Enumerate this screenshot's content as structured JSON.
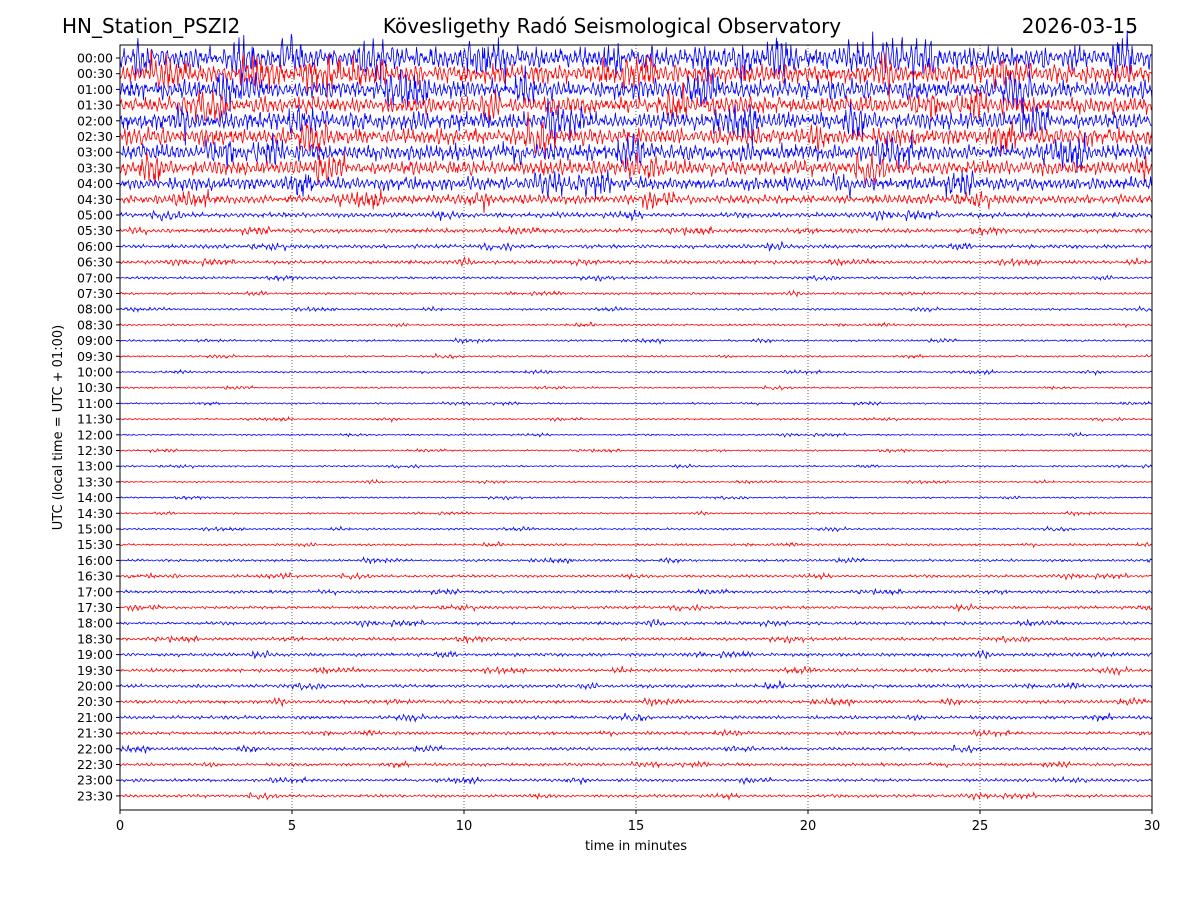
{
  "header": {
    "station": "HN_Station_PSZI2",
    "observatory": "Kövesligethy Radó Seismological Observatory",
    "date": "2026-03-15"
  },
  "chart_data": {
    "type": "line",
    "title": "Kövesligethy Radó Seismological Observatory",
    "xlabel": "time in minutes",
    "ylabel": "UTC (local time = UTC + 01:00)",
    "xlim": [
      0,
      30
    ],
    "xticks": [
      0,
      5,
      10,
      15,
      20,
      25,
      30
    ],
    "vertical_gridlines": [
      5,
      10,
      15,
      20,
      25
    ],
    "grid": "dotted vertical lines at x = 5, 10, 15, 20, 25",
    "row_labels": [
      "00:00",
      "00:30",
      "01:00",
      "01:30",
      "02:00",
      "02:30",
      "03:00",
      "03:30",
      "04:00",
      "04:30",
      "05:00",
      "05:30",
      "06:00",
      "06:30",
      "07:00",
      "07:30",
      "08:00",
      "08:30",
      "09:00",
      "09:30",
      "10:00",
      "10:30",
      "11:00",
      "11:30",
      "12:00",
      "12:30",
      "13:00",
      "13:30",
      "14:00",
      "14:30",
      "15:00",
      "15:30",
      "16:00",
      "16:30",
      "17:00",
      "17:30",
      "18:00",
      "18:30",
      "19:00",
      "19:30",
      "20:00",
      "20:30",
      "21:00",
      "21:30",
      "22:00",
      "22:30",
      "23:00",
      "23:30"
    ],
    "colors": [
      "#0000ff",
      "#ff0000"
    ],
    "relative_amplitude": [
      3.2,
      2.8,
      2.8,
      2.5,
      2.6,
      2.5,
      2.4,
      2.2,
      1.9,
      1.3,
      0.7,
      0.6,
      0.55,
      0.5,
      0.35,
      0.33,
      0.3,
      0.28,
      0.28,
      0.26,
      0.26,
      0.25,
      0.24,
      0.24,
      0.24,
      0.24,
      0.24,
      0.24,
      0.24,
      0.24,
      0.28,
      0.3,
      0.35,
      0.38,
      0.4,
      0.42,
      0.45,
      0.45,
      0.48,
      0.48,
      0.5,
      0.48,
      0.48,
      0.45,
      0.45,
      0.42,
      0.42,
      0.42
    ]
  }
}
